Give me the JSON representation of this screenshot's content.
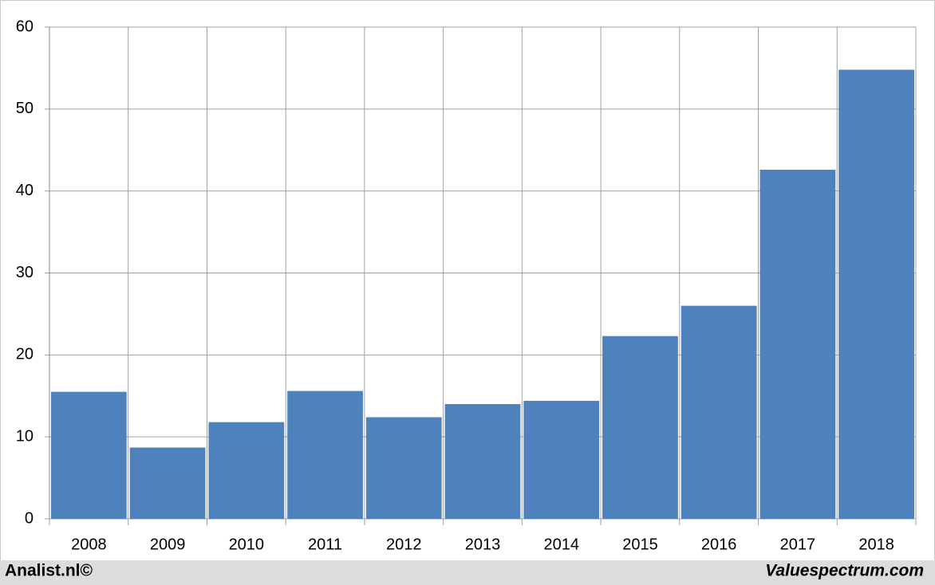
{
  "chart_data": {
    "type": "bar",
    "categories": [
      "2008",
      "2009",
      "2010",
      "2011",
      "2012",
      "2013",
      "2014",
      "2015",
      "2016",
      "2017",
      "2018"
    ],
    "values": [
      15.5,
      8.7,
      11.8,
      15.6,
      12.4,
      14.0,
      14.4,
      22.3,
      26.0,
      42.6,
      54.8
    ],
    "color": "#4f81bd",
    "ylim": [
      0,
      60
    ],
    "yticks": [
      0,
      10,
      20,
      30,
      40,
      50,
      60
    ],
    "grid": true,
    "source_left": "Analist.nl©",
    "source_right": "Valuespectrum.com"
  }
}
